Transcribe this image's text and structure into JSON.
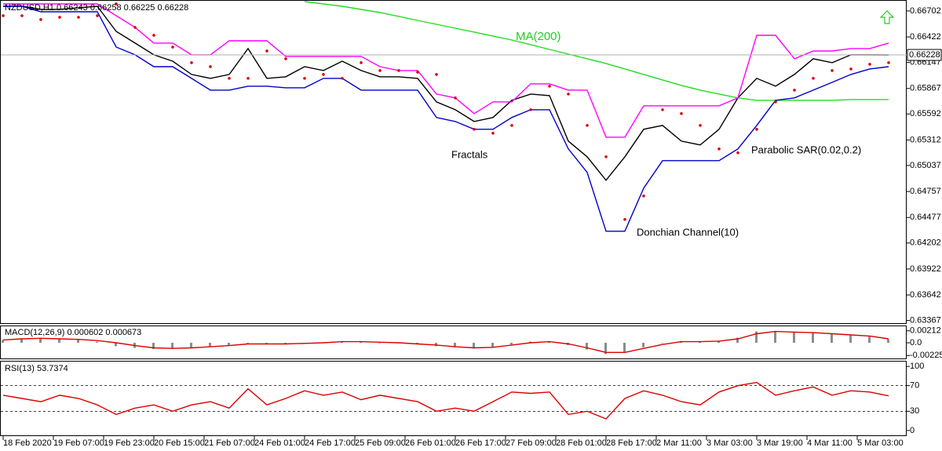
{
  "chart_data": [
    {
      "type": "line",
      "title": "NZDUSD,H1 0.66243 0.66258 0.66225 0.66228",
      "xlim": [
        -1,
        287.75
      ],
      "xticks": [
        {
          "value": 0,
          "label": "18 Feb 2020"
        },
        {
          "value": 16,
          "label": "19 Feb 07:00"
        },
        {
          "value": 32,
          "label": "19 Feb 23:00"
        },
        {
          "value": 48,
          "label": "20 Feb 15:00"
        },
        {
          "value": 64,
          "label": "21 Feb 07:00"
        },
        {
          "value": 80,
          "label": "24 Feb 01:00"
        },
        {
          "value": 96,
          "label": "24 Feb 17:00"
        },
        {
          "value": 112,
          "label": "25 Feb 09:00"
        },
        {
          "value": 128,
          "label": "26 Feb 01:00"
        },
        {
          "value": 144,
          "label": "26 Feb 17:00"
        },
        {
          "value": 160,
          "label": "27 Feb 09:00"
        },
        {
          "value": 176,
          "label": "28 Feb 01:00"
        },
        {
          "value": 192,
          "label": "28 Feb 17:00"
        },
        {
          "value": 208,
          "label": "2 Mar 11:00"
        },
        {
          "value": 224,
          "label": "3 Mar 03:00"
        },
        {
          "value": 240,
          "label": "3 Mar 19:00"
        },
        {
          "value": 256,
          "label": "4 Mar 11:00"
        },
        {
          "value": 272,
          "label": "5 Mar 03:00"
        }
      ],
      "ylim": [
        0.6333,
        0.6682
      ],
      "yticks": [
        0.66702,
        0.66422,
        0.66147,
        0.65867,
        0.65592,
        0.65312,
        0.65037,
        0.64757,
        0.64477,
        0.64202,
        0.63922,
        0.63642,
        0.63367
      ],
      "current": 0.66228,
      "annotations": [
        "Fractals"
      ],
      "x": [
        0,
        6,
        12,
        18,
        24,
        30,
        36,
        42,
        48,
        54,
        60,
        66,
        72,
        78,
        84,
        90,
        96,
        102,
        108,
        114,
        120,
        126,
        132,
        138,
        144,
        150,
        156,
        162,
        168,
        174,
        180,
        186,
        192,
        198,
        204,
        210,
        216,
        222,
        228,
        234,
        240,
        246,
        252,
        258,
        264,
        270,
        276,
        282
      ],
      "series": [
        {
          "kind": "line",
          "color": "#000000",
          "values": [
            0.66752,
            0.66752,
            0.66719,
            0.66719,
            0.66736,
            0.66752,
            0.66482,
            0.66356,
            0.66229,
            0.66161,
            0.66018,
            0.65976,
            0.66018,
            0.66297,
            0.65976,
            0.65993,
            0.66102,
            0.6606,
            0.66161,
            0.6606,
            0.65993,
            0.65993,
            0.65976,
            0.65722,
            0.65638,
            0.65511,
            0.65554,
            0.65739,
            0.65807,
            0.6579,
            0.653,
            0.65131,
            0.64878,
            0.65131,
            0.65427,
            0.65469,
            0.653,
            0.65258,
            0.65427,
            0.65765,
            0.65976,
            0.65891,
            0.66018,
            0.66187,
            0.66145,
            0.66229,
            0.66229,
            0.66228
          ]
        },
        {
          "kind": "line",
          "name": "MA(200)",
          "color": "#22dd22",
          "values": [
            null,
            null,
            null,
            null,
            null,
            null,
            null,
            null,
            null,
            null,
            null,
            null,
            null,
            null,
            null,
            null,
            0.66803,
            0.66778,
            0.66752,
            0.66719,
            0.66685,
            0.66643,
            0.666,
            0.66558,
            0.66516,
            0.66474,
            0.66432,
            0.66389,
            0.66339,
            0.66288,
            0.66237,
            0.66187,
            0.66136,
            0.66077,
            0.66018,
            0.65959,
            0.659,
            0.65849,
            0.65807,
            0.65765,
            0.65739,
            0.65739,
            0.65739,
            0.65739,
            0.65739,
            0.65748,
            0.65748,
            0.65748
          ]
        },
        {
          "kind": "line",
          "color": "#ff00ff",
          "values": [
            0.66778,
            0.66778,
            0.66778,
            0.66778,
            0.66778,
            0.66778,
            0.66651,
            0.66525,
            0.66356,
            0.66356,
            0.66229,
            0.66229,
            0.66381,
            0.66381,
            0.66381,
            0.66212,
            0.66212,
            0.66212,
            0.66212,
            0.66212,
            0.66102,
            0.6606,
            0.6606,
            0.65807,
            0.65765,
            0.65596,
            0.65722,
            0.65722,
            0.65917,
            0.65917,
            0.65849,
            0.65849,
            0.65342,
            0.65342,
            0.6568,
            0.6568,
            0.6568,
            0.6568,
            0.6568,
            0.65765,
            0.6644,
            0.6644,
            0.66187,
            0.66271,
            0.66271,
            0.66297,
            0.66297,
            0.66356
          ]
        },
        {
          "kind": "line",
          "name": "Donchian Channel(10)",
          "color": "#0000cc",
          "values": [
            0.66752,
            0.66752,
            0.66693,
            0.66693,
            0.66693,
            0.66693,
            0.66313,
            0.66229,
            0.66102,
            0.66102,
            0.65976,
            0.65849,
            0.65849,
            0.65891,
            0.65891,
            0.65874,
            0.65874,
            0.65976,
            0.65976,
            0.65849,
            0.65849,
            0.65849,
            0.65849,
            0.65554,
            0.65511,
            0.65427,
            0.65427,
            0.65554,
            0.65638,
            0.65638,
            0.65216,
            0.64963,
            0.64329,
            0.64329,
            0.64794,
            0.65089,
            0.65089,
            0.65089,
            0.65089,
            0.65216,
            0.65469,
            0.65739,
            0.65765,
            0.65849,
            0.65933,
            0.66018,
            0.66077,
            0.66102
          ]
        },
        {
          "kind": "dots",
          "name": "Parabolic SAR(0.02,0.2)",
          "color": "#dd0000",
          "values": [
            0.66651,
            0.66651,
            0.66609,
            0.66634,
            0.66634,
            0.66651,
            0.66778,
            0.66525,
            0.6644,
            0.66313,
            0.66145,
            0.66102,
            0.65976,
            0.65976,
            0.66271,
            0.66187,
            0.65976,
            0.66018,
            0.65976,
            0.66145,
            0.6606,
            0.6606,
            0.66043,
            0.66018,
            0.65765,
            0.65427,
            0.65385,
            0.65469,
            0.65638,
            0.65891,
            0.65807,
            0.65469,
            0.65131,
            0.64456,
            0.64709,
            0.65638,
            0.65596,
            0.65469,
            0.65216,
            0.65174,
            0.65427,
            0.65722,
            0.65849,
            0.65976,
            0.6606,
            0.66077,
            0.66128,
            0.66145
          ]
        }
      ]
    },
    {
      "type": "bar",
      "title": "MACD(12,26,9) 0.000602 0.000673",
      "ylim": [
        -0.00291,
        0.00306
      ],
      "yticks": [
        0.00212,
        {
          "value": 0,
          "label": "0.0"
        },
        -0.00225
      ],
      "x": [
        0,
        6,
        12,
        18,
        24,
        30,
        36,
        42,
        48,
        54,
        60,
        66,
        72,
        78,
        84,
        90,
        96,
        102,
        108,
        114,
        120,
        126,
        132,
        138,
        144,
        150,
        156,
        162,
        168,
        174,
        180,
        186,
        192,
        198,
        204,
        210,
        216,
        222,
        228,
        234,
        240,
        246,
        252,
        258,
        264,
        270,
        276,
        282
      ],
      "series": [
        {
          "kind": "bar",
          "color": "#8c8c8c",
          "values": [
            0.0005,
            0.0008,
            0.0008,
            0.0007,
            0.0006,
            0.0002,
            -0.0006,
            -0.0009,
            -0.0011,
            -0.001,
            -0.0009,
            -0.0006,
            -0.0004,
            -0.0001,
            -0.0002,
            -0.0002,
            0,
            0.0001,
            0.0002,
            0.0002,
            0,
            -0.0001,
            -0.0002,
            -0.0006,
            -0.0008,
            -0.001,
            -0.0008,
            -0.0003,
            0.0002,
            0.0003,
            -0.0004,
            -0.0012,
            -0.002,
            -0.0016,
            -0.0008,
            0,
            0.0003,
            0.0002,
            0.0003,
            0.0009,
            0.002,
            0.0021,
            0.0019,
            0.0018,
            0.0016,
            0.0013,
            0.0011,
            0.0006
          ]
        },
        {
          "kind": "line",
          "color": "#dd0000",
          "values": [
            0.0005,
            0.0007,
            0.0008,
            0.0007,
            0.0006,
            0.0004,
            0,
            -0.0005,
            -0.0009,
            -0.001,
            -0.0009,
            -0.0007,
            -0.0005,
            -0.0002,
            -0.0002,
            -0.0002,
            -0.0001,
            0,
            0.0002,
            0.0002,
            0.0001,
            0,
            -0.0002,
            -0.0004,
            -0.0007,
            -0.0009,
            -0.0008,
            -0.0004,
            0,
            0.0002,
            -0.0002,
            -0.0009,
            -0.0017,
            -0.0017,
            -0.001,
            -0.0003,
            0.0002,
            0.0002,
            0.0003,
            0.0007,
            0.0016,
            0.002,
            0.0019,
            0.0018,
            0.0016,
            0.0014,
            0.0012,
            0.0007
          ]
        }
      ]
    },
    {
      "type": "line",
      "title": "RSI(13) 53.7374",
      "ylim": [
        -8.75,
        108.75
      ],
      "yticks": [
        100,
        70,
        30,
        0
      ],
      "levels": [
        70,
        30
      ],
      "x": [
        0,
        6,
        12,
        18,
        24,
        30,
        36,
        42,
        48,
        54,
        60,
        66,
        72,
        78,
        84,
        90,
        96,
        102,
        108,
        114,
        120,
        126,
        132,
        138,
        144,
        150,
        156,
        162,
        168,
        174,
        180,
        186,
        192,
        198,
        204,
        210,
        216,
        222,
        228,
        234,
        240,
        246,
        252,
        258,
        264,
        270,
        276,
        282
      ],
      "series": [
        {
          "kind": "line",
          "color": "#dd0000",
          "values": [
            55,
            50,
            45,
            55,
            50,
            40,
            25,
            35,
            40,
            30,
            40,
            45,
            35,
            65,
            40,
            50,
            62,
            55,
            60,
            48,
            55,
            50,
            45,
            30,
            35,
            30,
            45,
            60,
            58,
            60,
            25,
            30,
            18,
            50,
            62,
            55,
            45,
            40,
            60,
            70,
            75,
            55,
            62,
            68,
            55,
            62,
            60,
            54
          ]
        }
      ]
    }
  ]
}
